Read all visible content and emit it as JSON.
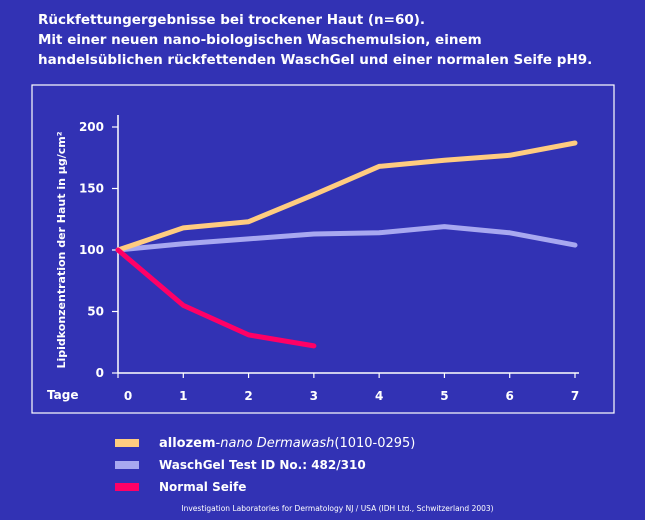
{
  "title": {
    "line1": "Rückfettungergebnisse bei trockener Haut (n=60).",
    "line2": "Mit einer neuen nano-biologischen Waschemulsion, einem",
    "line3": "handelsüblichen rückfettenden WaschGel und einer normalen Seife pH9."
  },
  "chart_data": {
    "type": "line",
    "title": "Rückfettungergebnisse bei trockener Haut (n=60). Mit einer neuen nano-biologischen Waschemulsion, einem handelsüblichen rückfettenden WaschGel und einer normalen Seife pH9.",
    "xlabel": "Tage",
    "ylabel": "Lipidkonzentration der Haut in µg/cm²",
    "x": [
      0,
      1,
      2,
      3,
      4,
      5,
      6,
      7
    ],
    "xticks": [
      "0",
      "1",
      "2",
      "3",
      "4",
      "5",
      "6",
      "7"
    ],
    "yticks": [
      "0",
      "50",
      "100",
      "150",
      "200"
    ],
    "ylim": [
      0,
      200
    ],
    "grid": false,
    "legend_position": "bottom",
    "series": [
      {
        "name": "allozem-nano Dermawash (1010-0295)",
        "color": "#ffcc80",
        "x": [
          0,
          1,
          2,
          3,
          4,
          5,
          6,
          7
        ],
        "values": [
          100,
          118,
          123,
          145,
          168,
          173,
          177,
          187
        ]
      },
      {
        "name": "WaschGel Test ID No.:  482/310",
        "color": "#a8a8f0",
        "x": [
          0,
          1,
          2,
          3,
          4,
          5,
          6,
          7
        ],
        "values": [
          100,
          105,
          109,
          113,
          114,
          119,
          114,
          104
        ]
      },
      {
        "name": "Normal Seife",
        "color": "#ff0066",
        "x": [
          0,
          1,
          2,
          3
        ],
        "values": [
          100,
          55,
          31,
          22
        ]
      }
    ]
  },
  "legend": {
    "item1_bold": "allozem",
    "item1_rest": "-nano Dermawash",
    "item1_code": " (1010-0295)",
    "item2": "WaschGel Test ID No.:  482/310",
    "item3": "Normal Seife"
  },
  "footnote": {
    "left": "Investigation Laboratories for Dermatology  NJ / USA (IDH Ltd., Schwitzerland 2003)"
  }
}
